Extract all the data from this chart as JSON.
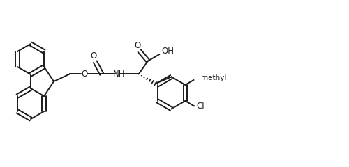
{
  "background_color": "#ffffff",
  "line_color": "#1a1a1a",
  "lw": 1.4,
  "fig_w": 5.0,
  "fig_h": 2.4,
  "dpi": 100,
  "xlim": [
    0,
    10
  ],
  "ylim": [
    0,
    4.8
  ]
}
